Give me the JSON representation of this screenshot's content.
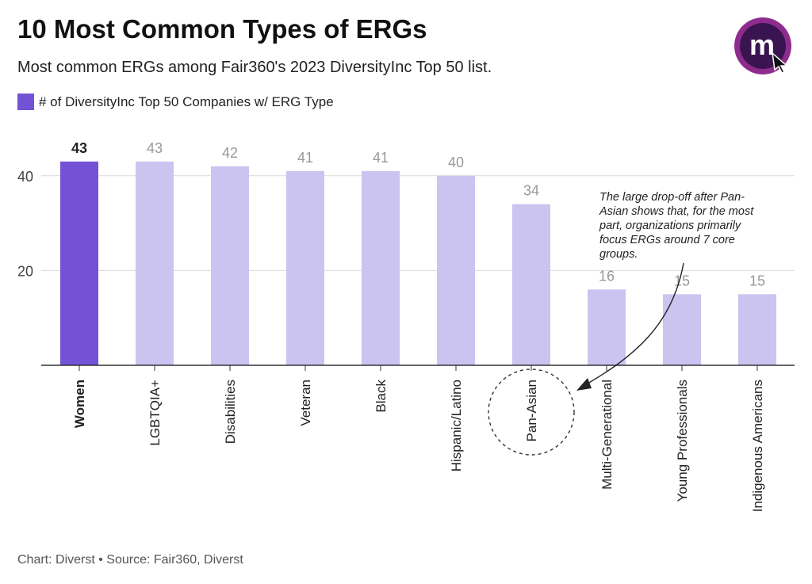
{
  "header": {
    "title": "10 Most Common Types of ERGs",
    "subtitle": "Most common ERGs among Fair360's 2023 DiversityInc Top 50 list."
  },
  "legend": {
    "label": "# of DiversityInc Top 50 Companies w/ ERG Type"
  },
  "annotation": {
    "text": "The large drop-off after Pan-Asian shows that, for the most part, organizations primarily focus ERGs around 7 core groups."
  },
  "footer": {
    "text": "Chart: Diverst • Source: Fair360, Diverst"
  },
  "logo": {
    "letter": "m",
    "color_outer": "#8e2c8e",
    "color_inner": "#3a1450"
  },
  "colors": {
    "highlight": "#7352d6",
    "base": "#cbc4f0",
    "highlight_label": "#222222",
    "base_label": "#999999",
    "grid": "#d9d9d9",
    "axis": "#333333"
  },
  "chart_data": {
    "type": "bar",
    "categories": [
      "Women",
      "LGBTQIA+",
      "Disabilities",
      "Veteran",
      "Black",
      "Hispanic/Latino",
      "Pan-Asian",
      "Multi-Generational",
      "Young Professionals",
      "Indigenous Americans"
    ],
    "series": [
      {
        "name": "# of DiversityInc Top 50 Companies w/ ERG Type",
        "values": [
          43,
          43,
          42,
          41,
          41,
          40,
          34,
          16,
          15,
          15
        ]
      }
    ],
    "highlight_index": 0,
    "circled_index": 6,
    "yticks": [
      20,
      40
    ],
    "ylim": [
      0,
      50
    ],
    "grid": true,
    "legend_position": "top-left"
  }
}
